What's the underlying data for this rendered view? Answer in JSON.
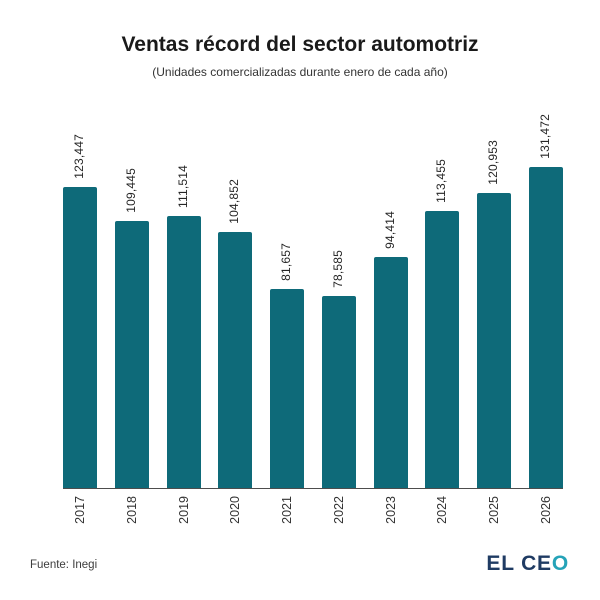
{
  "header": {
    "title": "Ventas récord del sector automotriz",
    "subtitle": "(Unidades comercializadas durante enero de cada año)"
  },
  "footer": {
    "source": "Fuente: Inegi",
    "logo_prefix": "EL CE",
    "logo_suffix": "O"
  },
  "colors": {
    "bar": "#0e6a79",
    "axis": "#4d4d4d",
    "title_text": "#1a1a1a",
    "logo_text": "#1f3b63",
    "logo_o": "#25a3b8"
  },
  "chart_data": {
    "type": "bar",
    "title": "Ventas récord del sector automotriz",
    "subtitle": "(Unidades comercializadas durante enero de cada año)",
    "categories": [
      "2017",
      "2018",
      "2019",
      "2020",
      "2021",
      "2022",
      "2023",
      "2024",
      "2025",
      "2026"
    ],
    "values": [
      123447,
      109445,
      111514,
      104852,
      81657,
      78585,
      94414,
      113455,
      120953,
      131472
    ],
    "value_labels": [
      "123,447",
      "109,445",
      "111,514",
      "104,852",
      "81,657",
      "78,585",
      "94,414",
      "113,455",
      "120,953",
      "131,472"
    ],
    "xlabel": "",
    "ylabel": "",
    "ylim": [
      0,
      131472
    ],
    "grid": false,
    "legend": false,
    "bar_color": "#0e6a79",
    "tick_label_rotation": 90,
    "value_label_rotation": 90,
    "value_label_position": "above-bar"
  }
}
